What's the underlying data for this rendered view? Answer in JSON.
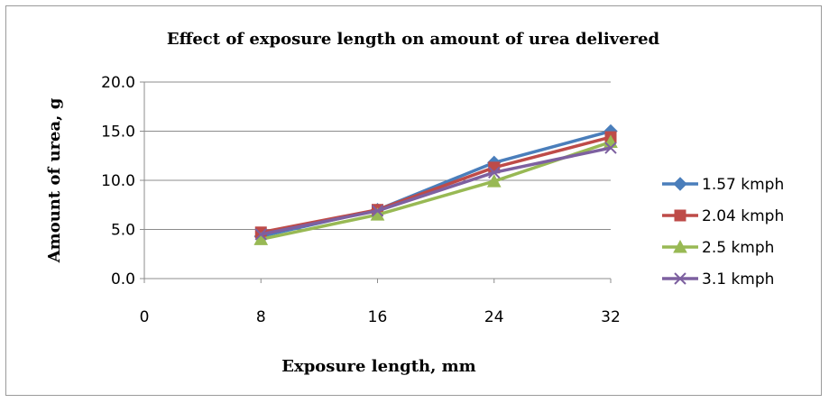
{
  "chart_data": {
    "type": "line",
    "title": "Effect of exposure length on amount of urea delivered",
    "xlabel": "Exposure length, mm",
    "ylabel": "Amount of urea, g",
    "x": [
      8,
      16,
      24,
      32
    ],
    "x_ticks": [
      "0",
      "8",
      "16",
      "24",
      "32"
    ],
    "y_ticks": [
      "0.0",
      "5.0",
      "10.0",
      "15.0",
      "20.0"
    ],
    "xlim": [
      0,
      32
    ],
    "ylim": [
      0,
      20
    ],
    "grid": "horizontal",
    "legend_position": "right",
    "series": [
      {
        "name": "1.57 kmph",
        "values": [
          4.3,
          7.0,
          11.8,
          15.0
        ],
        "color": "#4a7ebb",
        "marker": "diamond"
      },
      {
        "name": "2.04 kmph",
        "values": [
          4.7,
          7.0,
          11.3,
          14.4
        ],
        "color": "#be4b48",
        "marker": "square"
      },
      {
        "name": "2.5 kmph",
        "values": [
          4.0,
          6.5,
          9.9,
          13.9
        ],
        "color": "#98b954",
        "marker": "triangle"
      },
      {
        "name": "3.1 kmph",
        "values": [
          4.5,
          6.9,
          10.8,
          13.3
        ],
        "color": "#7d60a0",
        "marker": "x"
      }
    ]
  }
}
